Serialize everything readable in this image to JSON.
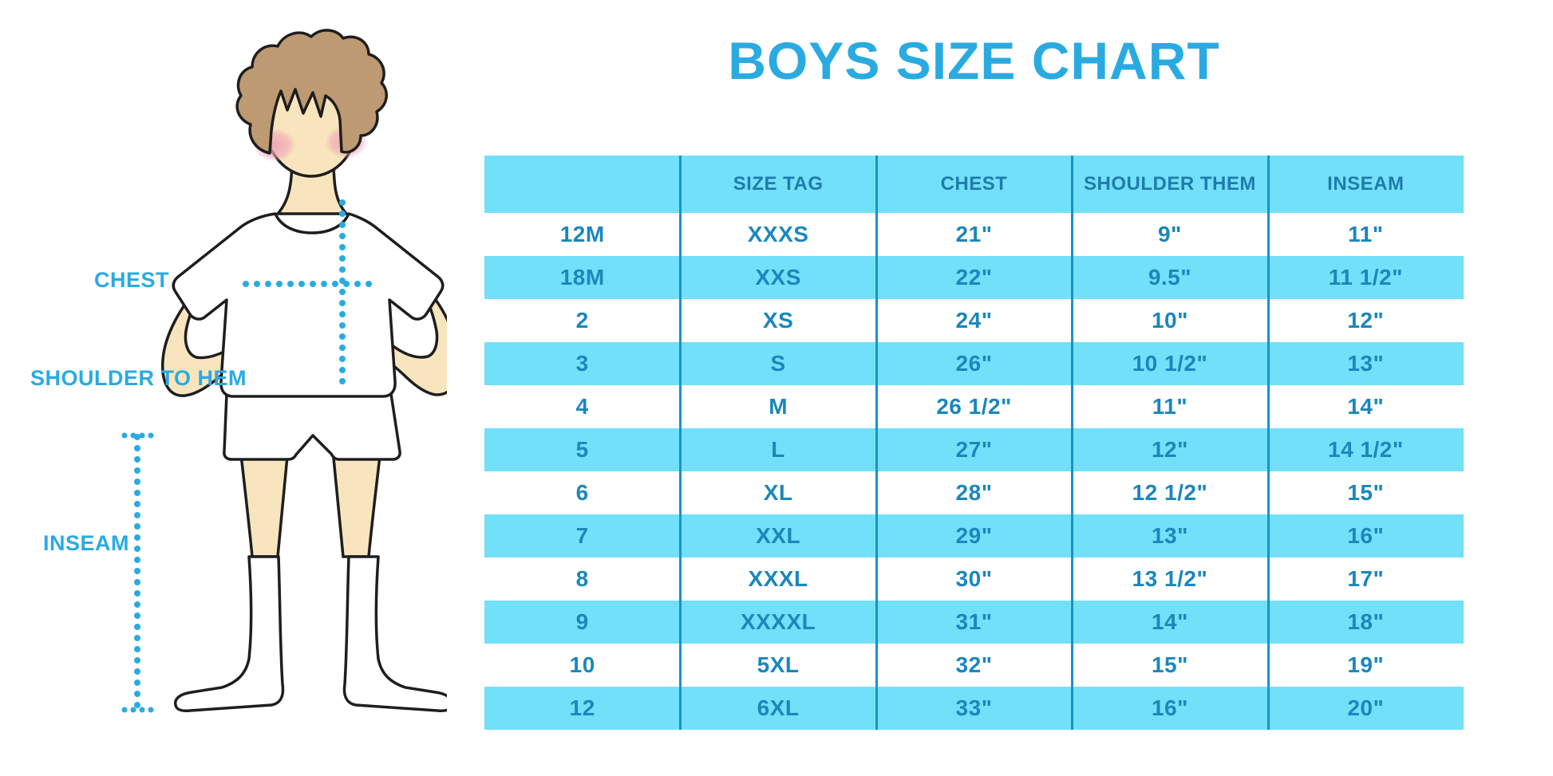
{
  "chart_data": {
    "type": "table",
    "title": "BOYS SIZE CHART",
    "columns": [
      "",
      "SIZE TAG",
      "CHEST",
      "SHOULDER THEM",
      "INSEAM"
    ],
    "rows": [
      [
        "12M",
        "XXXS",
        "21\"",
        "9\"",
        "11\""
      ],
      [
        "18M",
        "XXS",
        "22\"",
        "9.5\"",
        "11 1/2\""
      ],
      [
        "2",
        "XS",
        "24\"",
        "10\"",
        "12\""
      ],
      [
        "3",
        "S",
        "26\"",
        "10 1/2\"",
        "13\""
      ],
      [
        "4",
        "M",
        "26 1/2\"",
        "11\"",
        "14\""
      ],
      [
        "5",
        "L",
        "27\"",
        "12\"",
        "14 1/2\""
      ],
      [
        "6",
        "XL",
        "28\"",
        "12 1/2\"",
        "15\""
      ],
      [
        "7",
        "XXL",
        "29\"",
        "13\"",
        "16\""
      ],
      [
        "8",
        "XXXL",
        "30\"",
        "13 1/2\"",
        "17\""
      ],
      [
        "9",
        "XXXXL",
        "31\"",
        "14\"",
        "18\""
      ],
      [
        "10",
        "5XL",
        "32\"",
        "15\"",
        "19\""
      ],
      [
        "12",
        "6XL",
        "33\"",
        "16\"",
        "20\""
      ]
    ],
    "layout": {
      "banded_rows": true,
      "first_banded_row": "18M",
      "column_dividers": 4
    }
  },
  "figure": {
    "labels": {
      "chest": "CHEST",
      "shoulder_to_hem": "SHOULDER TO HEM",
      "inseam": "INSEAM"
    }
  },
  "colors": {
    "accent_blue": "#29ABE2",
    "row_band_cyan": "#73E0F9",
    "divider_line": "#1793C8",
    "header_text": "#1E7CAD",
    "cell_text": "#1A87BD",
    "skin": "#F9E5BD",
    "hair": "#BD9A71",
    "blush": "#EFA4B8",
    "outline": "#1E1E1E"
  }
}
